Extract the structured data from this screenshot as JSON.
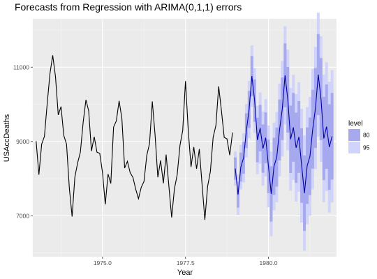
{
  "chart_data": {
    "type": "line",
    "title": "Forecasts from Regression with ARIMA(0,1,1) errors",
    "xlabel": "Year",
    "ylabel": "USAccDeaths",
    "xlim": [
      1972.9,
      1982.05
    ],
    "ylim": [
      5900,
      12300
    ],
    "x_ticks": [
      1975.0,
      1977.5,
      1980.0
    ],
    "x_tick_labels": [
      "1975.0",
      "1977.5",
      "1980.0"
    ],
    "y_ticks": [
      7000,
      9000,
      11000
    ],
    "y_tick_labels": [
      "7000",
      "9000",
      "11000"
    ],
    "grid": true,
    "legend": {
      "title": "level",
      "position": "right",
      "entries": [
        {
          "label": "80",
          "color": "#a7a9ee"
        },
        {
          "label": "95",
          "color": "#d0d3fa"
        }
      ]
    },
    "colors": {
      "panel": "#ebebeb",
      "grid_major": "#ffffff",
      "grid_minor": "#f5f5f5",
      "history_line": "#000000",
      "forecast_line": "#0000aa",
      "band_80": "#a7a9ee",
      "band_95": "#d0d3fa"
    },
    "history": {
      "start": 1973.0,
      "frequency": 12,
      "values": [
        9007,
        8106,
        8928,
        9137,
        10017,
        10826,
        11317,
        10744,
        9713,
        9938,
        9161,
        8927,
        7750,
        6981,
        8038,
        8422,
        8714,
        9512,
        10120,
        9823,
        8743,
        9129,
        8710,
        8680,
        8162,
        7306,
        8124,
        7870,
        9387,
        9556,
        10093,
        9620,
        8285,
        8466,
        8160,
        8034,
        7717,
        7461,
        7767,
        7925,
        8623,
        8945,
        10078,
        9179,
        8037,
        8488,
        7874,
        8647,
        7792,
        6957,
        7726,
        8106,
        8890,
        9299,
        10625,
        9302,
        8314,
        8850,
        8265,
        8796,
        7836,
        6892,
        7791,
        8192,
        9115,
        9434,
        10484,
        9827,
        9110,
        9070,
        8633,
        9240
      ]
    },
    "forecast": {
      "start": 1979.0,
      "frequency": 12,
      "mean": [
        8270,
        7570,
        8310,
        8560,
        9290,
        9860,
        10760,
        10100,
        9040,
        9360,
        8810,
        9100,
        8330,
        7590,
        8330,
        8580,
        9310,
        9880,
        10780,
        10120,
        9060,
        9380,
        8830,
        9120,
        8350,
        7610,
        8350,
        8600,
        9330,
        9900,
        10800,
        10140,
        9080,
        9400,
        8850,
        9140
      ],
      "spread_80": [
        300,
        350,
        390,
        430,
        470,
        500,
        540,
        570,
        600,
        625,
        650,
        680,
        720,
        745,
        770,
        795,
        820,
        840,
        860,
        885,
        905,
        925,
        945,
        965,
        1000,
        1015,
        1030,
        1045,
        1060,
        1075,
        1090,
        1105,
        1120,
        1135,
        1150,
        1165
      ],
      "spread_95": [
        460,
        540,
        600,
        660,
        720,
        770,
        830,
        870,
        920,
        960,
        1000,
        1040,
        1100,
        1140,
        1180,
        1215,
        1250,
        1285,
        1320,
        1355,
        1385,
        1415,
        1445,
        1475,
        1530,
        1550,
        1575,
        1600,
        1620,
        1645,
        1665,
        1690,
        1715,
        1735,
        1760,
        1780
      ]
    }
  }
}
